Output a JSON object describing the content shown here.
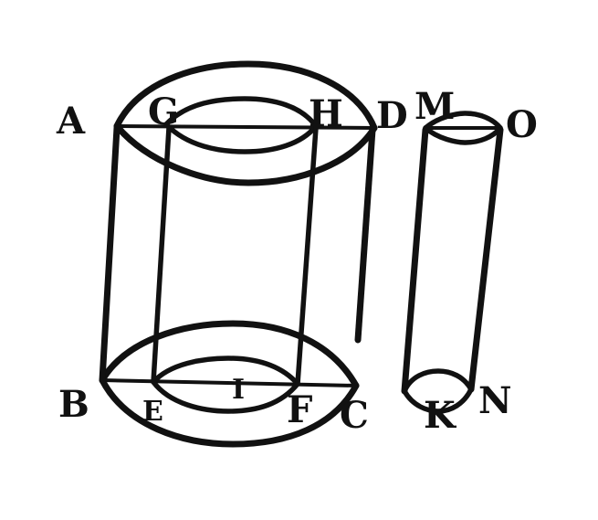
{
  "diagram": {
    "labels": {
      "A": "A",
      "G": "G",
      "H": "H",
      "D": "D",
      "M": "M",
      "O": "O",
      "B": "B",
      "E": "E",
      "I": "I",
      "F": "F",
      "C": "C",
      "K": "K",
      "N": "N"
    },
    "colors": {
      "ink": "#111111",
      "paper": "#ffffff"
    }
  }
}
